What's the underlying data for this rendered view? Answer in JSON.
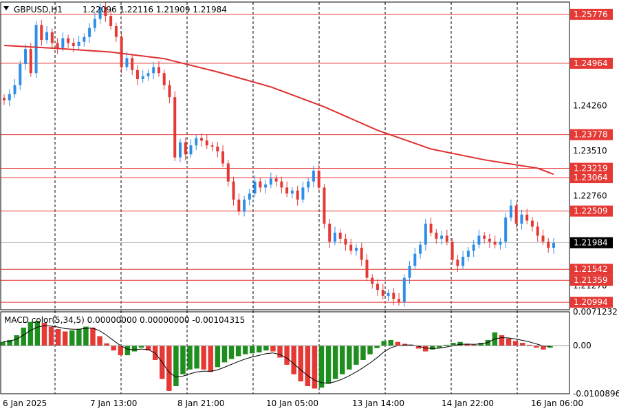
{
  "header": {
    "symbol": "GBPUSD,H1",
    "ohlc": "1.22096 1.22116 1.21909 1.21984"
  },
  "macd": {
    "label": "MACD color(5,34,5) 0.00000000 0.00000000 -0.00104315"
  },
  "colors": {
    "up": "#2f8fe8",
    "down": "#e53935",
    "ma": "#e03030",
    "level": "#e53935",
    "hist_up": "#1e8e1e",
    "hist_down": "#e53935",
    "grid": "#000000",
    "current": "#000000"
  },
  "chart_data": {
    "type": "candlestick",
    "price_axis": {
      "min": 1.2087,
      "max": 1.2598
    },
    "macd_axis": {
      "min": -0.0100896,
      "max": 0.0071232
    },
    "price_ticks": [
      "1.24260",
      "1.23510",
      "1.22760",
      "1.21270"
    ],
    "macd_ticks": [
      "0.0071232",
      "0.00",
      "-0.0100896"
    ],
    "levels": [
      1.25776,
      1.24964,
      1.23778,
      1.23219,
      1.23064,
      1.22509,
      1.21542,
      1.21359,
      1.20994
    ],
    "current_price": 1.21984,
    "time_labels": [
      "6 Jan 2025",
      "7 Jan 13:00",
      "8 Jan 21:00",
      "10 Jan 05:00",
      "13 Jan 14:00",
      "14 Jan 22:00",
      "16 Jan 06:00"
    ],
    "candles_close": [
      1.2435,
      1.2445,
      1.246,
      1.2495,
      1.252,
      1.248,
      1.256,
      1.2535,
      1.2548,
      1.253,
      1.2522,
      1.2538,
      1.253,
      1.2525,
      1.2532,
      1.254,
      1.2555,
      1.257,
      1.259,
      1.2575,
      1.2558,
      1.254,
      1.249,
      1.2505,
      1.2485,
      1.247,
      1.2475,
      1.248,
      1.249,
      1.248,
      1.246,
      1.244,
      1.234,
      1.2365,
      1.2345,
      1.236,
      1.2372,
      1.2368,
      1.236,
      1.2358,
      1.235,
      1.233,
      1.23,
      1.227,
      1.225,
      1.227,
      1.228,
      1.23,
      1.229,
      1.2295,
      1.2305,
      1.23,
      1.229,
      1.228,
      1.2285,
      1.227,
      1.229,
      1.23,
      1.2318,
      1.229,
      1.223,
      1.22,
      1.2215,
      1.2205,
      1.2195,
      1.2185,
      1.219,
      1.217,
      1.214,
      1.213,
      1.212,
      1.211,
      1.2115,
      1.2105,
      1.21,
      1.214,
      1.216,
      1.218,
      1.2195,
      1.223,
      1.2215,
      1.2205,
      1.221,
      1.22,
      1.217,
      1.216,
      1.2175,
      1.2185,
      1.2195,
      1.221,
      1.2205,
      1.22,
      1.2195,
      1.22,
      1.224,
      1.226,
      1.223,
      1.2245,
      1.2235,
      1.2225,
      1.221,
      1.22,
      1.219,
      1.2198
    ],
    "ma_line": [
      [
        0,
        1.2526
      ],
      [
        10,
        1.2521
      ],
      [
        20,
        1.2515
      ],
      [
        30,
        1.2504
      ],
      [
        40,
        1.2482
      ],
      [
        50,
        1.2457
      ],
      [
        60,
        1.2424
      ],
      [
        70,
        1.2385
      ],
      [
        80,
        1.2354
      ],
      [
        90,
        1.2336
      ],
      [
        100,
        1.2322
      ],
      [
        103,
        1.2312
      ]
    ],
    "macd_histogram": [
      0.0008,
      0.0012,
      0.0022,
      0.0038,
      0.005,
      0.0052,
      0.0048,
      0.004,
      0.0035,
      0.003,
      0.0032,
      0.0035,
      0.004,
      0.0038,
      0.002,
      0.0005,
      -0.001,
      -0.002,
      -0.002,
      -0.0012,
      -0.0004,
      -0.001,
      -0.003,
      -0.007,
      -0.0095,
      -0.0085,
      -0.006,
      -0.005,
      -0.0048,
      -0.005,
      -0.0055,
      -0.0045,
      -0.0035,
      -0.0028,
      -0.0022,
      -0.0018,
      -0.0016,
      -0.0014,
      -0.001,
      -0.0012,
      -0.0025,
      -0.004,
      -0.006,
      -0.0075,
      -0.0085,
      -0.009,
      -0.0088,
      -0.008,
      -0.007,
      -0.006,
      -0.005,
      -0.004,
      -0.003,
      -0.0018,
      -0.0005,
      0.001,
      0.0012,
      0.0008,
      0.0004,
      0.0002,
      -0.0006,
      -0.0012,
      -0.0008,
      -0.0004,
      0.0002,
      0.0006,
      0.0008,
      0.0004,
      0.0002,
      0.0006,
      0.0012,
      0.0028,
      0.0022,
      0.0015,
      0.001,
      0.0006,
      0.0002,
      -0.0004,
      -0.0008,
      -0.0004
    ]
  }
}
